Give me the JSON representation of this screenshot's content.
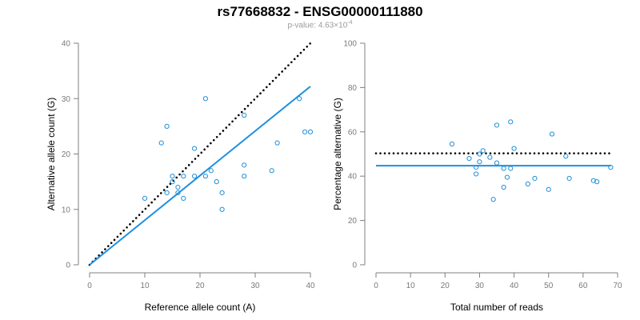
{
  "figure": {
    "title": "rs77668832 - ENSG00000111880",
    "subtitle_prefix": "p-value: 4.63×10",
    "subtitle_exponent": "-4"
  },
  "colors": {
    "points": "#1f8fd8",
    "fit_line": "#1f8fe0",
    "reference_line": "#000000",
    "axis": "#7f7f7f"
  },
  "chart_data": [
    {
      "type": "scatter",
      "xlabel": "Reference allele count (A)",
      "ylabel": "Alternative allele count (G)",
      "xlim": [
        0,
        40
      ],
      "ylim": [
        0,
        40
      ],
      "xticks": [
        0,
        10,
        20,
        30,
        40
      ],
      "yticks": [
        0,
        10,
        20,
        30,
        40
      ],
      "grid": false,
      "points": [
        {
          "x": 10,
          "y": 12
        },
        {
          "x": 13,
          "y": 22
        },
        {
          "x": 14,
          "y": 25
        },
        {
          "x": 14,
          "y": 13
        },
        {
          "x": 15,
          "y": 16
        },
        {
          "x": 15,
          "y": 15
        },
        {
          "x": 16,
          "y": 14
        },
        {
          "x": 16,
          "y": 13
        },
        {
          "x": 17,
          "y": 16
        },
        {
          "x": 17,
          "y": 12
        },
        {
          "x": 19,
          "y": 21
        },
        {
          "x": 19,
          "y": 16
        },
        {
          "x": 21,
          "y": 30
        },
        {
          "x": 21,
          "y": 16
        },
        {
          "x": 22,
          "y": 17
        },
        {
          "x": 23,
          "y": 15
        },
        {
          "x": 24,
          "y": 13
        },
        {
          "x": 24,
          "y": 10
        },
        {
          "x": 28,
          "y": 27
        },
        {
          "x": 28,
          "y": 18
        },
        {
          "x": 28,
          "y": 16
        },
        {
          "x": 33,
          "y": 17
        },
        {
          "x": 34,
          "y": 22
        },
        {
          "x": 38,
          "y": 30
        },
        {
          "x": 39,
          "y": 24
        },
        {
          "x": 40,
          "y": 24
        }
      ],
      "lines": [
        {
          "style": "dotted",
          "color": "#000000",
          "from": [
            0,
            0
          ],
          "to": [
            40,
            40
          ]
        },
        {
          "style": "solid",
          "color": "#1f8fe0",
          "from": [
            0,
            0
          ],
          "to": [
            40,
            32.2
          ]
        }
      ]
    },
    {
      "type": "scatter",
      "xlabel": "Total number of reads",
      "ylabel": "Percentage alternative (G)",
      "xlim": [
        0,
        70
      ],
      "ylim": [
        0,
        100
      ],
      "xticks": [
        0,
        10,
        20,
        30,
        40,
        50,
        60,
        70
      ],
      "yticks": [
        0,
        20,
        40,
        60,
        80,
        100
      ],
      "grid": false,
      "points": [
        {
          "x": 22,
          "y": 54.5
        },
        {
          "x": 27,
          "y": 48
        },
        {
          "x": 29,
          "y": 41
        },
        {
          "x": 29,
          "y": 44
        },
        {
          "x": 30,
          "y": 50
        },
        {
          "x": 30,
          "y": 46.5
        },
        {
          "x": 31,
          "y": 51.5
        },
        {
          "x": 33,
          "y": 48.5
        },
        {
          "x": 34,
          "y": 29.5
        },
        {
          "x": 35,
          "y": 63
        },
        {
          "x": 35,
          "y": 46
        },
        {
          "x": 37,
          "y": 43.5
        },
        {
          "x": 37,
          "y": 35
        },
        {
          "x": 38,
          "y": 39.5
        },
        {
          "x": 39,
          "y": 64.5
        },
        {
          "x": 39,
          "y": 43.5
        },
        {
          "x": 40,
          "y": 52.5
        },
        {
          "x": 44,
          "y": 36.5
        },
        {
          "x": 46,
          "y": 39
        },
        {
          "x": 50,
          "y": 34
        },
        {
          "x": 51,
          "y": 59
        },
        {
          "x": 55,
          "y": 49
        },
        {
          "x": 56,
          "y": 39
        },
        {
          "x": 63,
          "y": 38
        },
        {
          "x": 64,
          "y": 37.5
        },
        {
          "x": 68,
          "y": 44
        }
      ],
      "lines": [
        {
          "style": "dotted",
          "color": "#000000",
          "from": [
            0,
            50.3
          ],
          "to": [
            68,
            50.3
          ]
        },
        {
          "style": "solid",
          "color": "#1f8fe0",
          "from": [
            0,
            44.7
          ],
          "to": [
            68,
            44.7
          ]
        }
      ]
    }
  ]
}
